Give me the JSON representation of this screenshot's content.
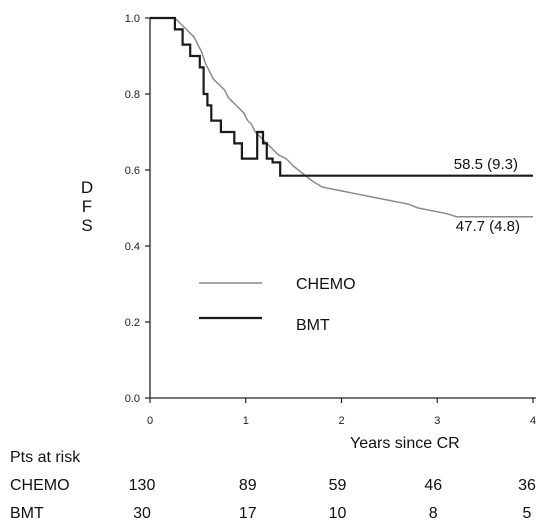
{
  "chart_data": {
    "type": "line",
    "title": "",
    "xlabel": "Years since CR",
    "ylabel": "D F S",
    "xlim": [
      0,
      4
    ],
    "ylim": [
      0,
      1.0
    ],
    "x_ticks": [
      "0",
      "1",
      "2",
      "3",
      "4"
    ],
    "y_ticks": [
      "0.0",
      "0.2",
      "0.4",
      "0.6",
      "0.8",
      "1.0"
    ],
    "series": [
      {
        "name": "CHEMO",
        "color": "#8a8a8a",
        "annotation": "47.7 (4.8)",
        "points": [
          [
            0,
            1.0
          ],
          [
            0.26,
            1.0
          ],
          [
            0.3,
            0.99
          ],
          [
            0.34,
            0.98
          ],
          [
            0.38,
            0.97
          ],
          [
            0.42,
            0.96
          ],
          [
            0.46,
            0.95
          ],
          [
            0.5,
            0.93
          ],
          [
            0.54,
            0.91
          ],
          [
            0.58,
            0.88
          ],
          [
            0.62,
            0.86
          ],
          [
            0.66,
            0.84
          ],
          [
            0.7,
            0.83
          ],
          [
            0.74,
            0.82
          ],
          [
            0.78,
            0.81
          ],
          [
            0.82,
            0.79
          ],
          [
            0.86,
            0.78
          ],
          [
            0.9,
            0.77
          ],
          [
            0.94,
            0.76
          ],
          [
            0.98,
            0.75
          ],
          [
            1.02,
            0.73
          ],
          [
            1.06,
            0.72
          ],
          [
            1.1,
            0.7
          ],
          [
            1.14,
            0.69
          ],
          [
            1.18,
            0.68
          ],
          [
            1.22,
            0.67
          ],
          [
            1.26,
            0.66
          ],
          [
            1.3,
            0.65
          ],
          [
            1.34,
            0.64
          ],
          [
            1.38,
            0.635
          ],
          [
            1.42,
            0.63
          ],
          [
            1.46,
            0.62
          ],
          [
            1.5,
            0.61
          ],
          [
            1.55,
            0.6
          ],
          [
            1.6,
            0.59
          ],
          [
            1.65,
            0.58
          ],
          [
            1.7,
            0.57
          ],
          [
            1.8,
            0.555
          ],
          [
            1.9,
            0.55
          ],
          [
            2.0,
            0.545
          ],
          [
            2.1,
            0.54
          ],
          [
            2.2,
            0.535
          ],
          [
            2.3,
            0.53
          ],
          [
            2.4,
            0.525
          ],
          [
            2.5,
            0.52
          ],
          [
            2.6,
            0.515
          ],
          [
            2.7,
            0.51
          ],
          [
            2.8,
            0.5
          ],
          [
            2.9,
            0.495
          ],
          [
            3.0,
            0.49
          ],
          [
            3.1,
            0.485
          ],
          [
            3.2,
            0.477
          ],
          [
            4.0,
            0.477
          ]
        ]
      },
      {
        "name": "BMT",
        "color": "#1a1a1a",
        "annotation": "58.5 (9.3)",
        "points": [
          [
            0,
            1.0
          ],
          [
            0.26,
            1.0
          ],
          [
            0.26,
            0.97
          ],
          [
            0.34,
            0.97
          ],
          [
            0.34,
            0.93
          ],
          [
            0.42,
            0.93
          ],
          [
            0.42,
            0.9
          ],
          [
            0.52,
            0.9
          ],
          [
            0.52,
            0.87
          ],
          [
            0.56,
            0.87
          ],
          [
            0.56,
            0.8
          ],
          [
            0.6,
            0.8
          ],
          [
            0.6,
            0.77
          ],
          [
            0.64,
            0.77
          ],
          [
            0.64,
            0.73
          ],
          [
            0.74,
            0.73
          ],
          [
            0.74,
            0.7
          ],
          [
            0.88,
            0.7
          ],
          [
            0.88,
            0.67
          ],
          [
            0.96,
            0.67
          ],
          [
            0.96,
            0.63
          ],
          [
            1.12,
            0.63
          ],
          [
            1.12,
            0.7
          ],
          [
            1.18,
            0.7
          ],
          [
            1.18,
            0.67
          ],
          [
            1.22,
            0.67
          ],
          [
            1.22,
            0.63
          ],
          [
            1.28,
            0.63
          ],
          [
            1.28,
            0.62
          ],
          [
            1.36,
            0.62
          ],
          [
            1.36,
            0.585
          ],
          [
            4.0,
            0.585
          ]
        ]
      }
    ],
    "legend": {
      "placement": "center-left",
      "items": [
        {
          "label": "CHEMO",
          "color": "#8a8a8a"
        },
        {
          "label": "BMT",
          "color": "#1a1a1a"
        }
      ]
    },
    "risk_table": {
      "title": "Pts at risk",
      "rows": [
        {
          "label": "CHEMO",
          "values": [
            "130",
            "89",
            "59",
            "46",
            "36"
          ]
        },
        {
          "label": "BMT",
          "values": [
            "30",
            "17",
            "10",
            "8",
            "5"
          ]
        }
      ]
    }
  }
}
